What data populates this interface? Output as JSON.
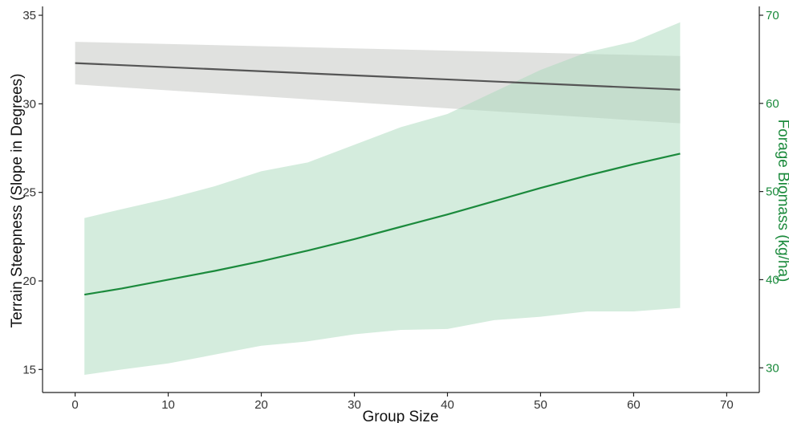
{
  "chart_data": {
    "type": "line",
    "title": "",
    "xlabel": "Group Size",
    "ylabel_left": "Terrain Steepness (Slope in Degrees)",
    "ylabel_right": "Forage Biomass (kg/ha)",
    "xlim": [
      -3.5,
      73.5
    ],
    "ylim_left": [
      13.7,
      35.5
    ],
    "ylim_right": [
      27.2,
      71.0
    ],
    "x_ticks": [
      0,
      10,
      20,
      30,
      40,
      50,
      60,
      70
    ],
    "y_left_ticks": [
      15,
      20,
      25,
      30,
      35
    ],
    "y_right_ticks": [
      30,
      40,
      50,
      60,
      70
    ],
    "grid": false,
    "legend": "none",
    "colors": {
      "steepness_line": "#555555",
      "steepness_band": "#c7c9c4",
      "biomass_line": "#1b8a3c",
      "biomass_band": "#a9d9bc",
      "right_axis": "#1b8a3c",
      "axis": "#222222"
    },
    "series": [
      {
        "axis": "left",
        "x": [
          0,
          65
        ],
        "y": [
          32.3,
          30.8
        ],
        "lower": [
          31.1,
          28.9
        ],
        "upper": [
          33.5,
          32.7
        ]
      },
      {
        "axis": "right",
        "x": [
          1,
          5,
          10,
          15,
          20,
          25,
          30,
          35,
          40,
          45,
          50,
          55,
          60,
          65
        ],
        "y": [
          38.3,
          39.0,
          40.0,
          41.0,
          42.1,
          43.3,
          44.6,
          46.0,
          47.4,
          48.9,
          50.4,
          51.8,
          53.1,
          54.3
        ],
        "lower": [
          29.2,
          29.8,
          30.5,
          31.5,
          32.5,
          33.0,
          33.8,
          34.3,
          34.4,
          35.4,
          35.8,
          36.4,
          36.4,
          36.8
        ],
        "upper": [
          47.0,
          48.0,
          49.2,
          50.6,
          52.3,
          53.3,
          55.3,
          57.3,
          58.8,
          61.3,
          63.8,
          65.8,
          67.0,
          69.2
        ]
      }
    ]
  }
}
